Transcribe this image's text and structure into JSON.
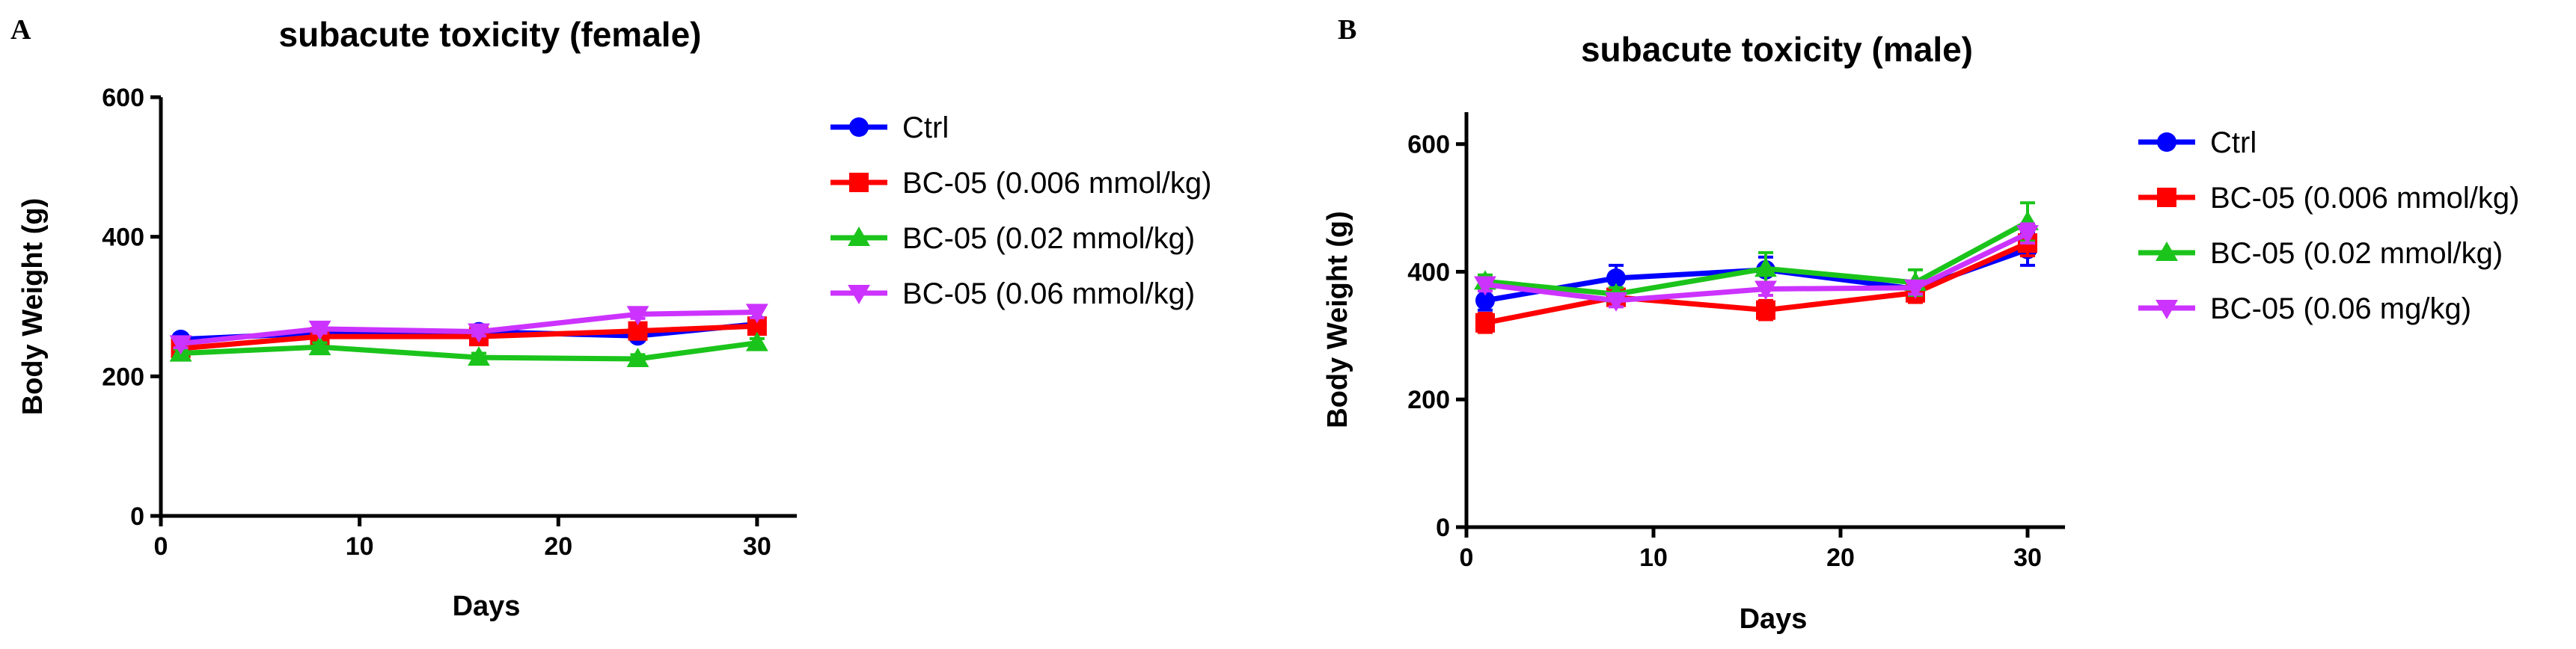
{
  "figure": {
    "panels": [
      "A",
      "B"
    ]
  },
  "chart_data": [
    {
      "panel": "A",
      "type": "line",
      "title": "subacute toxicity (female)",
      "xlabel": "Days",
      "ylabel": "Body Weight (g)",
      "xlim": [
        0,
        32
      ],
      "ylim": [
        0,
        600
      ],
      "xticks": [
        0,
        10,
        20,
        30
      ],
      "yticks": [
        0,
        200,
        400,
        600
      ],
      "legend_position": "right",
      "series": [
        {
          "name": "Ctrl",
          "color": "#0000ff",
          "marker": "circle",
          "x": [
            1,
            8,
            16,
            24,
            30
          ],
          "y": [
            253,
            262,
            264,
            258,
            275
          ],
          "err": [
            6,
            6,
            6,
            6,
            6
          ]
        },
        {
          "name": "BC-05 (0.006 mmol/kg)",
          "color": "#ff0000",
          "marker": "square",
          "x": [
            1,
            8,
            16,
            24,
            30
          ],
          "y": [
            240,
            257,
            257,
            265,
            272
          ],
          "err": [
            6,
            6,
            6,
            6,
            6
          ]
        },
        {
          "name": "BC-05 (0.02 mmol/kg)",
          "color": "#1bc41b",
          "marker": "triangle-up",
          "x": [
            1,
            8,
            16,
            24,
            30
          ],
          "y": [
            233,
            242,
            227,
            225,
            248
          ],
          "err": [
            6,
            6,
            6,
            6,
            6
          ]
        },
        {
          "name": "BC-05 (0.06 mmol/kg)",
          "color": "#cc33ff",
          "marker": "triangle-down",
          "x": [
            1,
            8,
            16,
            24,
            30
          ],
          "y": [
            247,
            268,
            264,
            289,
            292
          ],
          "err": [
            6,
            6,
            6,
            6,
            8
          ]
        }
      ]
    },
    {
      "panel": "B",
      "type": "line",
      "title": "subacute toxicity (male)",
      "xlabel": "Days",
      "ylabel": "Body Weight (g)",
      "xlim": [
        0,
        32
      ],
      "ylim": [
        0,
        650
      ],
      "xticks": [
        0,
        10,
        20,
        30
      ],
      "yticks": [
        0,
        200,
        400,
        600
      ],
      "legend_position": "right",
      "series": [
        {
          "name": "Ctrl",
          "color": "#0000ff",
          "marker": "circle",
          "x": [
            1,
            8,
            16,
            24,
            30
          ],
          "y": [
            355,
            390,
            403,
            373,
            435
          ],
          "err": [
            15,
            20,
            20,
            12,
            25
          ]
        },
        {
          "name": "BC-05 (0.006 mmol/kg)",
          "color": "#ff0000",
          "marker": "square",
          "x": [
            1,
            8,
            16,
            24,
            30
          ],
          "y": [
            320,
            360,
            340,
            367,
            445
          ],
          "err": [
            15,
            12,
            15,
            15,
            20
          ]
        },
        {
          "name": "BC-05 (0.02 mmol/kg)",
          "color": "#1bc41b",
          "marker": "triangle-up",
          "x": [
            1,
            8,
            16,
            24,
            30
          ],
          "y": [
            385,
            365,
            405,
            383,
            478
          ],
          "err": [
            10,
            10,
            25,
            20,
            30
          ]
        },
        {
          "name": "BC-05 (0.06 mg/kg)",
          "color": "#cc33ff",
          "marker": "triangle-down",
          "x": [
            1,
            8,
            16,
            24,
            30
          ],
          "y": [
            380,
            355,
            373,
            375,
            460
          ],
          "err": [
            10,
            10,
            10,
            10,
            15
          ]
        }
      ]
    }
  ]
}
